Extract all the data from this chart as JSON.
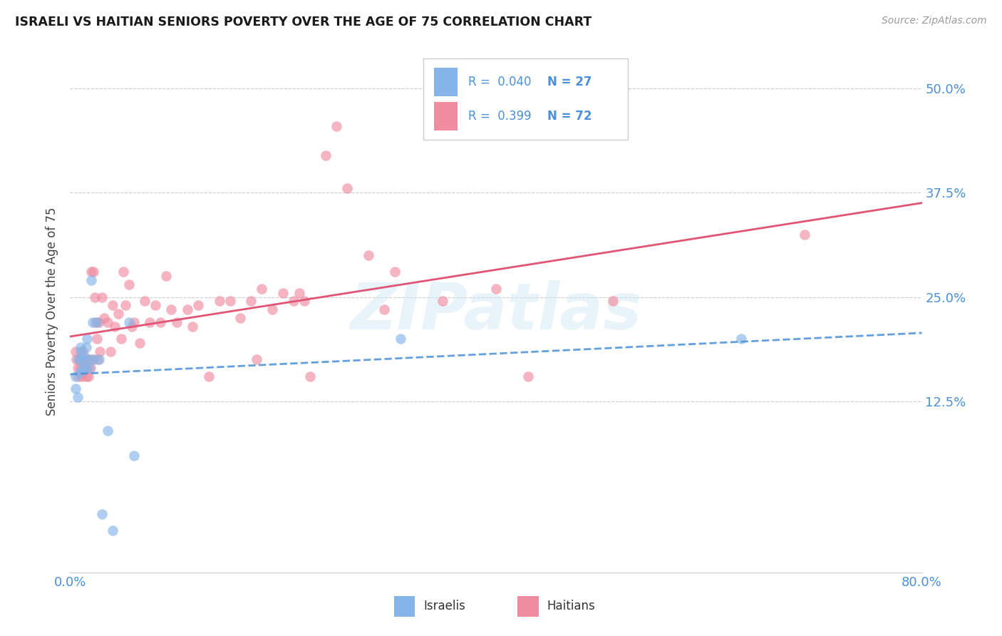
{
  "title": "ISRAELI VS HAITIAN SENIORS POVERTY OVER THE AGE OF 75 CORRELATION CHART",
  "source": "Source: ZipAtlas.com",
  "ylabel": "Seniors Poverty Over the Age of 75",
  "ytick_labels": [
    "12.5%",
    "25.0%",
    "37.5%",
    "50.0%"
  ],
  "ytick_values": [
    0.125,
    0.25,
    0.375,
    0.5
  ],
  "xlim": [
    0.0,
    0.8
  ],
  "ylim": [
    -0.08,
    0.545
  ],
  "legend_israeli": {
    "R": "0.040",
    "N": "27"
  },
  "legend_haitian": {
    "R": "0.399",
    "N": "72"
  },
  "israeli_color": "#85b5e8",
  "haitian_color": "#f08ca0",
  "trend_israeli_color": "#4a90d9",
  "trend_haitian_color": "#e05575",
  "watermark": "ZIPatlas",
  "israelis_x": [
    0.005,
    0.005,
    0.007,
    0.008,
    0.009,
    0.01,
    0.01,
    0.011,
    0.012,
    0.013,
    0.014,
    0.015,
    0.016,
    0.017,
    0.018,
    0.02,
    0.021,
    0.022,
    0.025,
    0.027,
    0.03,
    0.035,
    0.04,
    0.055,
    0.06,
    0.31,
    0.63
  ],
  "israelis_y": [
    0.155,
    0.14,
    0.13,
    0.175,
    0.16,
    0.185,
    0.19,
    0.175,
    0.165,
    0.18,
    0.165,
    0.19,
    0.2,
    0.175,
    0.165,
    0.27,
    0.22,
    0.175,
    0.22,
    0.175,
    -0.01,
    0.09,
    -0.03,
    0.22,
    0.06,
    0.2,
    0.2
  ],
  "haitians_x": [
    0.005,
    0.006,
    0.007,
    0.008,
    0.009,
    0.01,
    0.011,
    0.012,
    0.013,
    0.014,
    0.015,
    0.016,
    0.017,
    0.018,
    0.019,
    0.02,
    0.021,
    0.022,
    0.023,
    0.024,
    0.025,
    0.026,
    0.027,
    0.028,
    0.03,
    0.032,
    0.035,
    0.038,
    0.04,
    0.042,
    0.045,
    0.048,
    0.05,
    0.052,
    0.055,
    0.058,
    0.06,
    0.065,
    0.07,
    0.075,
    0.08,
    0.085,
    0.09,
    0.095,
    0.1,
    0.11,
    0.115,
    0.12,
    0.13,
    0.14,
    0.15,
    0.16,
    0.17,
    0.175,
    0.18,
    0.19,
    0.2,
    0.21,
    0.215,
    0.22,
    0.225,
    0.24,
    0.25,
    0.26,
    0.28,
    0.295,
    0.305,
    0.35,
    0.4,
    0.43,
    0.51,
    0.69
  ],
  "haitians_y": [
    0.185,
    0.175,
    0.165,
    0.155,
    0.175,
    0.165,
    0.155,
    0.185,
    0.175,
    0.165,
    0.155,
    0.165,
    0.155,
    0.175,
    0.165,
    0.28,
    0.175,
    0.28,
    0.25,
    0.22,
    0.2,
    0.175,
    0.22,
    0.185,
    0.25,
    0.225,
    0.22,
    0.185,
    0.24,
    0.215,
    0.23,
    0.2,
    0.28,
    0.24,
    0.265,
    0.215,
    0.22,
    0.195,
    0.245,
    0.22,
    0.24,
    0.22,
    0.275,
    0.235,
    0.22,
    0.235,
    0.215,
    0.24,
    0.155,
    0.245,
    0.245,
    0.225,
    0.245,
    0.175,
    0.26,
    0.235,
    0.255,
    0.245,
    0.255,
    0.245,
    0.155,
    0.42,
    0.455,
    0.38,
    0.3,
    0.235,
    0.28,
    0.245,
    0.26,
    0.155,
    0.245,
    0.325
  ]
}
